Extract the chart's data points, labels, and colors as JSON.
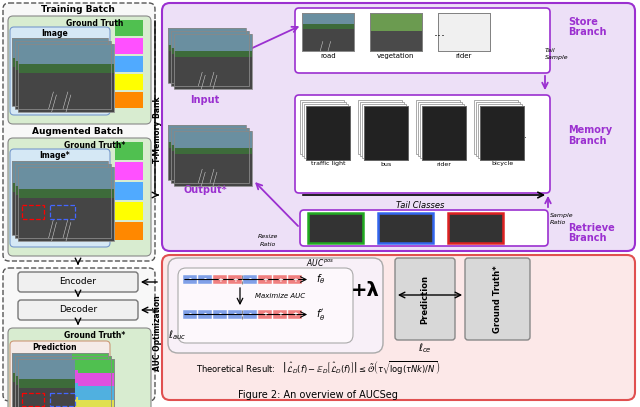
{
  "title": "Figure 2: An overview of AUCSeg",
  "bg_color": "#ffffff",
  "purple_color": "#9b30d0",
  "purple_light": "#ede0f7",
  "pink_color": "#e05050",
  "pink_light": "#fce8e8",
  "gray_light": "#e8e8e8",
  "green_light": "#d8ecd0",
  "blue_light": "#d5e8f5",
  "store_classes": [
    "road",
    "vegetation",
    "rider"
  ],
  "memory_classes": [
    "traffic light",
    "bus",
    "rider",
    "bicycle"
  ],
  "training_batch": "Training Batch",
  "augmented_batch": "Augmented Batch",
  "t_memory_bank": "T-Memory Bank",
  "auc_optimization": "AUC Optimization",
  "input_label": "Input",
  "output_label": "Output*",
  "store_branch": "Store\nBranch",
  "memory_branch": "Memory\nBranch",
  "retrieve_branch": "Retrieve\nBranch",
  "tail_classes": "Tail Classes",
  "tail_sample": "Tail\nSample",
  "sample_ratio": "Sample\nRatio",
  "resize_ratio": "Resize\nRatio",
  "encoder": "Encoder",
  "decoder": "Decoder",
  "ground_truth": "Ground Truth",
  "ground_truth_star": "Ground Truth*",
  "image_label": "Image",
  "image_star": "Image*",
  "prediction": "Prediction",
  "plus_lambda": "+λ",
  "l_auc": "$\\ell_{auc}$",
  "l_ce": "$\\ell_{ce}$",
  "maximize_auc": "Maximize AUC",
  "f_theta": "$f_\\theta$",
  "f_theta_prime": "$f_\\theta'$",
  "auc_pos": "$AUC^{pos}$",
  "theoretical": "Theoretical Result:   $\\left|\\hat{\\mathcal{L}}_D(f)-\\mathbb{E}_D\\left[\\hat{\\mathcal{L}}_D(f)\\right]\\right|\\leq\\tilde{\\mathcal{O}}\\left(\\tau\\sqrt{\\log(\\tau Nk)/N}\\right)$"
}
